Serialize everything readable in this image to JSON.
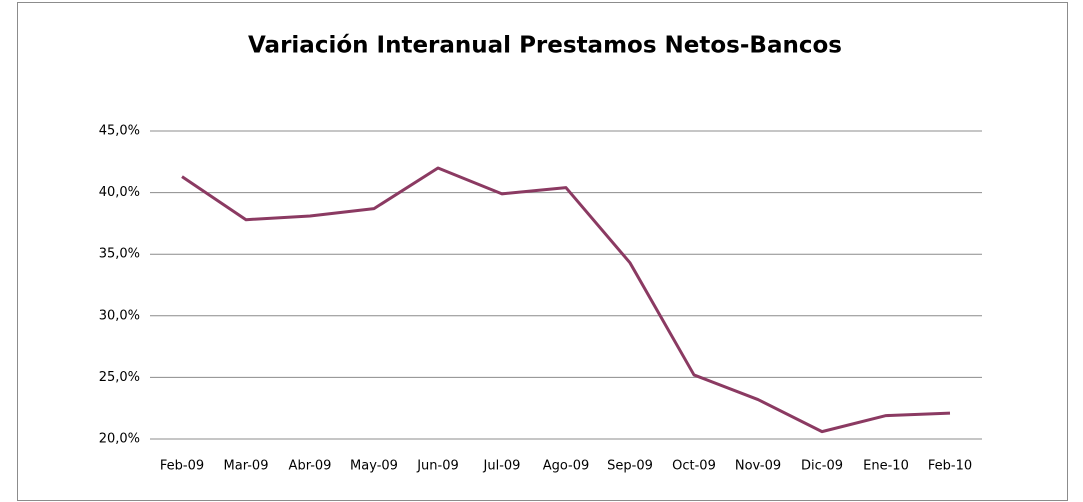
{
  "chart_data": {
    "type": "line",
    "title": "Variación Interanual Prestamos Netos-Bancos",
    "categories": [
      "Feb-09",
      "Mar-09",
      "Abr-09",
      "May-09",
      "Jun-09",
      "Jul-09",
      "Ago-09",
      "Sep-09",
      "Oct-09",
      "Nov-09",
      "Dic-09",
      "Ene-10",
      "Feb-10"
    ],
    "series": [
      {
        "name": "Variación Interanual",
        "color": "#8b3a62",
        "values": [
          41.3,
          37.8,
          38.1,
          38.7,
          42.0,
          39.9,
          40.4,
          34.3,
          25.2,
          23.2,
          20.6,
          21.9,
          22.1
        ]
      }
    ],
    "ylim": [
      20,
      45
    ],
    "yticks": [
      {
        "value": 20,
        "label": "20,0%"
      },
      {
        "value": 25,
        "label": "25,0%"
      },
      {
        "value": 30,
        "label": "30,0%"
      },
      {
        "value": 35,
        "label": "35,0%"
      },
      {
        "value": 40,
        "label": "40,0%"
      },
      {
        "value": 45,
        "label": "45,0%"
      }
    ],
    "grid": true,
    "legend": false
  }
}
